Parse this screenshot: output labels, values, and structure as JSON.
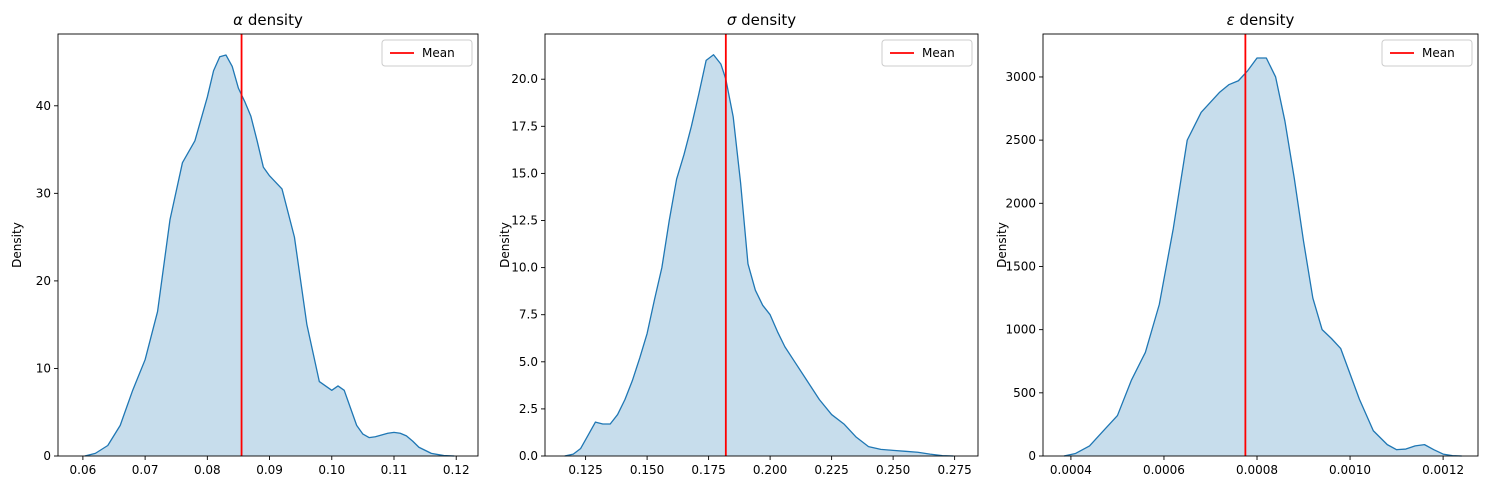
{
  "chart_data": [
    {
      "type": "area",
      "title": "α density",
      "title_symbol": "α",
      "title_suffix": " density",
      "xlabel": "",
      "ylabel": "Density",
      "xlim": [
        0.056,
        0.1235
      ],
      "ylim": [
        0,
        48.2
      ],
      "xticks": [
        0.06,
        0.07,
        0.08,
        0.09,
        0.1,
        0.11,
        0.12
      ],
      "xtick_labels": [
        "0.06",
        "0.07",
        "0.08",
        "0.09",
        "0.10",
        "0.11",
        "0.12"
      ],
      "yticks": [
        0,
        10,
        20,
        30,
        40
      ],
      "ytick_labels": [
        "0",
        "10",
        "20",
        "30",
        "40"
      ],
      "mean": 0.0855,
      "legend": {
        "label": "Mean",
        "placement": "upper right"
      },
      "x": [
        0.0603,
        0.062,
        0.064,
        0.066,
        0.068,
        0.07,
        0.072,
        0.074,
        0.076,
        0.078,
        0.08,
        0.081,
        0.082,
        0.083,
        0.084,
        0.085,
        0.086,
        0.087,
        0.088,
        0.089,
        0.09,
        0.092,
        0.094,
        0.096,
        0.098,
        0.1,
        0.101,
        0.102,
        0.103,
        0.104,
        0.105,
        0.106,
        0.107,
        0.108,
        0.109,
        0.11,
        0.111,
        0.112,
        0.113,
        0.114,
        0.116,
        0.118,
        0.1197
      ],
      "y": [
        0.0,
        0.3,
        1.2,
        3.5,
        7.5,
        11.0,
        16.5,
        27.0,
        33.5,
        36.0,
        41.0,
        44.0,
        45.6,
        45.8,
        44.5,
        42.0,
        40.5,
        38.8,
        36.0,
        33.0,
        32.0,
        30.5,
        25.0,
        15.0,
        8.5,
        7.5,
        8.0,
        7.5,
        5.5,
        3.5,
        2.5,
        2.1,
        2.2,
        2.4,
        2.6,
        2.7,
        2.6,
        2.3,
        1.7,
        1.0,
        0.3,
        0.05,
        0.0
      ]
    },
    {
      "type": "area",
      "title": "σ density",
      "title_symbol": "σ",
      "title_suffix": " density",
      "xlabel": "",
      "ylabel": "Density",
      "xlim": [
        0.1085,
        0.2845
      ],
      "ylim": [
        0,
        22.4
      ],
      "xticks": [
        0.125,
        0.15,
        0.175,
        0.2,
        0.225,
        0.25,
        0.275
      ],
      "xtick_labels": [
        "0.125",
        "0.150",
        "0.175",
        "0.200",
        "0.225",
        "0.250",
        "0.275"
      ],
      "yticks": [
        0,
        2.5,
        5.0,
        7.5,
        10.0,
        12.5,
        15.0,
        17.5,
        20.0
      ],
      "ytick_labels": [
        "0.0",
        "2.5",
        "5.0",
        "7.5",
        "10.0",
        "12.5",
        "15.0",
        "17.5",
        "20.0"
      ],
      "mean": 0.182,
      "legend": {
        "label": "Mean",
        "placement": "upper right"
      },
      "x": [
        0.1165,
        0.12,
        0.123,
        0.126,
        0.129,
        0.132,
        0.135,
        0.138,
        0.141,
        0.144,
        0.147,
        0.15,
        0.153,
        0.156,
        0.159,
        0.162,
        0.165,
        0.168,
        0.171,
        0.174,
        0.177,
        0.18,
        0.182,
        0.185,
        0.188,
        0.191,
        0.194,
        0.197,
        0.2,
        0.203,
        0.206,
        0.21,
        0.215,
        0.22,
        0.225,
        0.23,
        0.235,
        0.24,
        0.245,
        0.25,
        0.255,
        0.26,
        0.265,
        0.27,
        0.2745
      ],
      "y": [
        0.0,
        0.1,
        0.4,
        1.1,
        1.8,
        1.7,
        1.7,
        2.2,
        3.0,
        4.0,
        5.2,
        6.5,
        8.3,
        10.0,
        12.5,
        14.7,
        16.0,
        17.5,
        19.2,
        21.0,
        21.3,
        20.8,
        20.0,
        18.0,
        14.5,
        10.2,
        8.8,
        8.0,
        7.5,
        6.6,
        5.8,
        5.0,
        4.0,
        3.0,
        2.2,
        1.7,
        1.0,
        0.5,
        0.35,
        0.3,
        0.25,
        0.2,
        0.1,
        0.02,
        0.0
      ]
    },
    {
      "type": "area",
      "title": "ε density",
      "title_symbol": "ε",
      "title_suffix": " density",
      "xlabel": "",
      "ylabel": "Density",
      "xlim": [
        0.00034,
        0.001275
      ],
      "ylim": [
        0,
        3340
      ],
      "xticks": [
        0.0004,
        0.0006,
        0.0008,
        0.001,
        0.0012
      ],
      "xtick_labels": [
        "0.0004",
        "0.0006",
        "0.0008",
        "0.0010",
        "0.0012"
      ],
      "yticks": [
        0,
        500,
        1000,
        1500,
        2000,
        2500,
        3000
      ],
      "ytick_labels": [
        "0",
        "500",
        "1000",
        "1500",
        "2000",
        "2500",
        "3000"
      ],
      "mean": 0.000775,
      "legend": {
        "label": "Mean",
        "placement": "upper right"
      },
      "x": [
        0.000385,
        0.00041,
        0.00044,
        0.00047,
        0.0005,
        0.00053,
        0.00056,
        0.00059,
        0.00062,
        0.00065,
        0.00068,
        0.0007,
        0.00072,
        0.00074,
        0.00076,
        0.00078,
        0.0008,
        0.00082,
        0.00084,
        0.00086,
        0.00088,
        0.0009,
        0.00092,
        0.00094,
        0.00096,
        0.00098,
        0.001,
        0.00102,
        0.00105,
        0.00108,
        0.0011,
        0.00112,
        0.00114,
        0.00116,
        0.00118,
        0.0012,
        0.00122,
        0.00124
      ],
      "y": [
        0,
        20,
        80,
        200,
        320,
        600,
        820,
        1200,
        1800,
        2500,
        2720,
        2800,
        2880,
        2940,
        2970,
        3050,
        3150,
        3150,
        3000,
        2650,
        2200,
        1700,
        1250,
        1000,
        930,
        850,
        650,
        450,
        200,
        90,
        50,
        55,
        80,
        90,
        50,
        15,
        3,
        0
      ]
    }
  ]
}
